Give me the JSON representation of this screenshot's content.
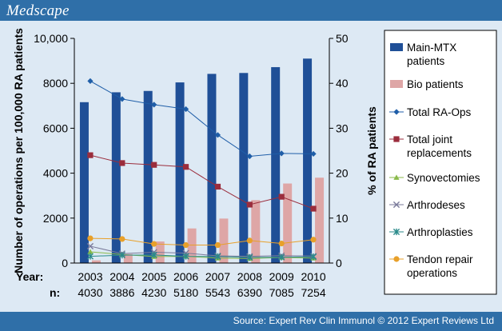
{
  "header": {
    "brand": "Medscape"
  },
  "footer": {
    "source": "Source: Expert Rev Clin Immunol © 2012 Expert Reviews Ltd"
  },
  "chart_data": {
    "type": "bar",
    "title": "",
    "years": [
      "2003",
      "2004",
      "2005",
      "2006",
      "2007",
      "2008",
      "2009",
      "2010"
    ],
    "n_values": [
      "4030",
      "3886",
      "4230",
      "5180",
      "5543",
      "6390",
      "7085",
      "7254"
    ],
    "row_labels": {
      "year": "Year:",
      "n": "n:"
    },
    "left_axis": {
      "label": "Number of operations per 100,000 RA patients",
      "ylim": [
        0,
        10000
      ],
      "ticks": [
        0,
        2000,
        4000,
        6000,
        8000,
        10000
      ],
      "tick_labels": [
        "0",
        "2000",
        "4000",
        "6000",
        "8000",
        "10,000"
      ]
    },
    "right_axis": {
      "label": "% of RA patients",
      "ylim": [
        0,
        50
      ],
      "ticks": [
        0,
        10,
        20,
        30,
        40,
        50
      ],
      "tick_labels": [
        "0",
        "10",
        "20",
        "30",
        "40",
        "50"
      ]
    },
    "bar_series": [
      {
        "name": "Main-MTX patients",
        "color": "#1f4f97",
        "axis": "right",
        "values": [
          35.8,
          38.0,
          38.3,
          40.2,
          42.1,
          42.3,
          43.6,
          45.5
        ]
      },
      {
        "name": "Bio patients",
        "color": "#dea6a6",
        "axis": "right",
        "values": [
          0.6,
          2.0,
          4.8,
          7.7,
          9.9,
          14.0,
          17.7,
          19.0
        ]
      }
    ],
    "line_series": [
      {
        "name": "Total RA-Ops",
        "color": "#1f5ea8",
        "marker": "diamond",
        "values": [
          8100,
          7300,
          7050,
          6850,
          5700,
          4750,
          4880,
          4860
        ]
      },
      {
        "name": "Total joint replacements",
        "color": "#9b2d3c",
        "marker": "square",
        "values": [
          4800,
          4450,
          4370,
          4280,
          3400,
          2600,
          2950,
          2420
        ]
      },
      {
        "name": "Synovectomies",
        "color": "#8aba4a",
        "marker": "triangle",
        "values": [
          500,
          380,
          290,
          300,
          220,
          200,
          250,
          220
        ]
      },
      {
        "name": "Arthrodeses",
        "color": "#7a7a9a",
        "marker": "x",
        "values": [
          750,
          420,
          480,
          440,
          320,
          300,
          330,
          310
        ]
      },
      {
        "name": "Arthroplasties",
        "color": "#2a8a8a",
        "marker": "asterisk",
        "values": [
          300,
          350,
          360,
          300,
          290,
          250,
          260,
          280
        ]
      },
      {
        "name": "Tendon repair operations",
        "color": "#e8a02a",
        "marker": "circle",
        "values": [
          1100,
          1070,
          850,
          800,
          800,
          1000,
          870,
          1040
        ]
      }
    ],
    "legend": {
      "placement": "right",
      "entries": [
        {
          "label": "Main-MTX patients",
          "series": "Main-MTX patients"
        },
        {
          "label": "Bio patients",
          "series": "Bio patients"
        },
        {
          "label": "Total RA-Ops",
          "series": "Total RA-Ops"
        },
        {
          "label": "Total joint replacements",
          "series": "Total joint replacements"
        },
        {
          "label": "Synovectomies",
          "series": "Synovectomies"
        },
        {
          "label": "Arthrodeses",
          "series": "Arthrodeses"
        },
        {
          "label": "Arthroplasties",
          "series": "Arthroplasties"
        },
        {
          "label": "Tendon repair operations",
          "series": "Tendon repair operations"
        }
      ]
    },
    "grid": false
  }
}
